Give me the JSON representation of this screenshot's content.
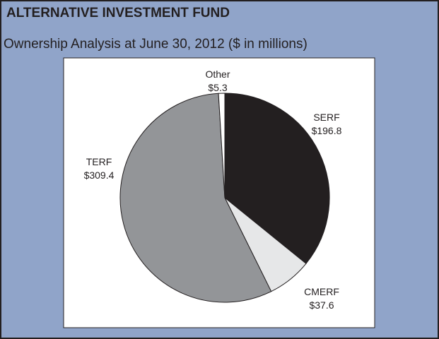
{
  "chart_data": {
    "type": "pie",
    "title": "ALTERNATIVE INVESTMENT FUND",
    "subtitle": "Ownership Analysis at June 30, 2012 ($ in millions)",
    "categories": [
      "SERF",
      "CMERF",
      "TERF",
      "Other"
    ],
    "values": [
      196.8,
      37.6,
      309.4,
      5.3
    ],
    "value_labels": [
      "$196.8",
      "$37.6",
      "$309.4",
      "$5.3"
    ],
    "colors": [
      "#231f20",
      "#e6e7e8",
      "#939598",
      "#ffffff"
    ]
  }
}
